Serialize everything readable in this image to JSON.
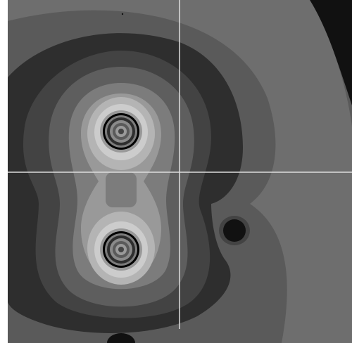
{
  "image_type": "grayscale contour plot of a field",
  "crosshair": {
    "color": "#dddddd"
  },
  "palette": {
    "background_edge": "#ffffff",
    "corner_dark": "#111111",
    "outer_light": "#6e6e6e",
    "outer_mid": "#5a5a5a",
    "dark_band": "#2e2e2e",
    "band_2": "#434343",
    "band_3": "#5e5e5e",
    "band_4": "#7c7c7c",
    "band_5": "#999999",
    "band_6": "#b4b4b4",
    "band_7": "#cccccc",
    "ring_black": "#000000"
  },
  "features": [
    {
      "name": "upper-source",
      "kind": "concentric-rings"
    },
    {
      "name": "lower-source",
      "kind": "concentric-rings"
    },
    {
      "name": "right-sink",
      "kind": "dark-spot"
    },
    {
      "name": "bottom-sink",
      "kind": "dark-spot"
    },
    {
      "name": "top-dot",
      "kind": "dot"
    }
  ]
}
